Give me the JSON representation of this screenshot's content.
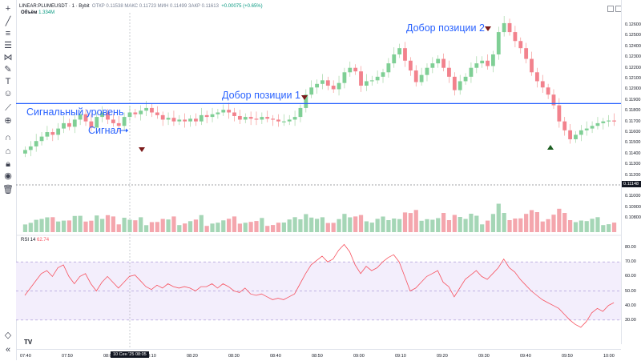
{
  "header": {
    "symbol": "LINEAR:PLUMEUSDT · 1 · Bybit",
    "ohlc_text": "ОТКР 0.11538  МАКС 0.11723  МИН 0.11499  ЗАКР 0.11613",
    "change": "+0.00075 (+0.65%)"
  },
  "volume": {
    "label": "Объём",
    "value": "1.334M"
  },
  "rsi": {
    "label": "RSI 14",
    "value": "62.74"
  },
  "price_axis": {
    "ticks": [
      "0.12600",
      "0.12500",
      "0.12400",
      "0.12300",
      "0.12200",
      "0.12100",
      "0.12000",
      "0.11900",
      "0.11800",
      "0.11700",
      "0.11600",
      "0.11500",
      "0.11400",
      "0.11300",
      "0.11200",
      "0.11100",
      "0.11000",
      "0.10900",
      "0.10800"
    ],
    "current_price": "0.11148"
  },
  "rsi_axis": {
    "ticks": [
      "80.00",
      "70.00",
      "60.00",
      "50.00",
      "40.00",
      "30.00"
    ]
  },
  "time_axis": {
    "ticks": [
      "07:40",
      "07:50",
      "08:00",
      "08:10",
      "08:20",
      "08:30",
      "08:40",
      "08:50",
      "09:00",
      "09:10",
      "09:20",
      "09:30",
      "09:40",
      "09:50",
      "10:00"
    ],
    "crosshair_label": "10 Сен '25  08:05"
  },
  "annotations": {
    "signal_level": "Сигнальный уровень",
    "signal": "Сигнал",
    "add_position_1": "Добор позиции 1",
    "add_position_2": "Добор позиции 2"
  },
  "logo": "TV",
  "colors": {
    "up": "#a5d6b6",
    "down": "#f4a6ad",
    "up_strong": "#66bb6a",
    "down_strong": "#ef5350",
    "line": "#2962ff",
    "rsi": "#f7525f"
  },
  "chart_data": {
    "type": "candlestick",
    "closes": [
      0.1118,
      0.1122,
      0.1128,
      0.1133,
      0.1138,
      0.1135,
      0.1142,
      0.1148,
      0.1144,
      0.1152,
      0.1158,
      0.115,
      0.1143,
      0.1155,
      0.116,
      0.1152,
      0.1148,
      0.1145,
      0.1155,
      0.116,
      0.1158,
      0.1162,
      0.1165,
      0.116,
      0.1157,
      0.1152,
      0.1154,
      0.115,
      0.1152,
      0.115,
      0.1153,
      0.115,
      0.1157,
      0.1155,
      0.1158,
      0.116,
      0.1163,
      0.116,
      0.1156,
      0.1152,
      0.1155,
      0.1153,
      0.1152,
      0.1155,
      0.1153,
      0.1152,
      0.115,
      0.115,
      0.1152,
      0.1155,
      0.1165,
      0.118,
      0.1188,
      0.1192,
      0.1196,
      0.119,
      0.1186,
      0.1193,
      0.1205,
      0.121,
      0.1206,
      0.119,
      0.1195,
      0.1196,
      0.12,
      0.1205,
      0.1215,
      0.1225,
      0.1232,
      0.1218,
      0.1207,
      0.1194,
      0.1202,
      0.121,
      0.1215,
      0.122,
      0.121,
      0.12,
      0.1185,
      0.1195,
      0.12,
      0.121,
      0.1215,
      0.1218,
      0.1212,
      0.1225,
      0.125,
      0.126,
      0.125,
      0.124,
      0.1232,
      0.122,
      0.1205,
      0.1195,
      0.1188,
      0.118,
      0.1168,
      0.115,
      0.114,
      0.113,
      0.1135,
      0.114,
      0.1142,
      0.1145,
      0.1148,
      0.115,
      0.1151,
      0.115
    ],
    "ylim": [
      0.1078,
      0.1268
    ],
    "signal_level": 0.117,
    "rsi": [
      47,
      52,
      57,
      62,
      64,
      60,
      66,
      68,
      60,
      55,
      60,
      62,
      55,
      50,
      56,
      60,
      56,
      52,
      56,
      60,
      61,
      57,
      53,
      51,
      54,
      52,
      55,
      53,
      52,
      53,
      52,
      50,
      53,
      53,
      55,
      52,
      55,
      53,
      50,
      49,
      52,
      48,
      47,
      48,
      46,
      44,
      45,
      44,
      46,
      48,
      55,
      62,
      68,
      71,
      74,
      70,
      72,
      78,
      82,
      77,
      68,
      62,
      67,
      64,
      66,
      70,
      73,
      75,
      70,
      60,
      50,
      52,
      56,
      60,
      62,
      64,
      56,
      53,
      46,
      52,
      58,
      61,
      64,
      60,
      58,
      62,
      66,
      72,
      66,
      63,
      58,
      54,
      50,
      47,
      44,
      42,
      40,
      38,
      34,
      30,
      27,
      25,
      29,
      35,
      38,
      36,
      40,
      42
    ],
    "rsi_ylim": [
      20,
      85
    ],
    "rsi_levels": [
      70,
      50,
      30
    ]
  }
}
